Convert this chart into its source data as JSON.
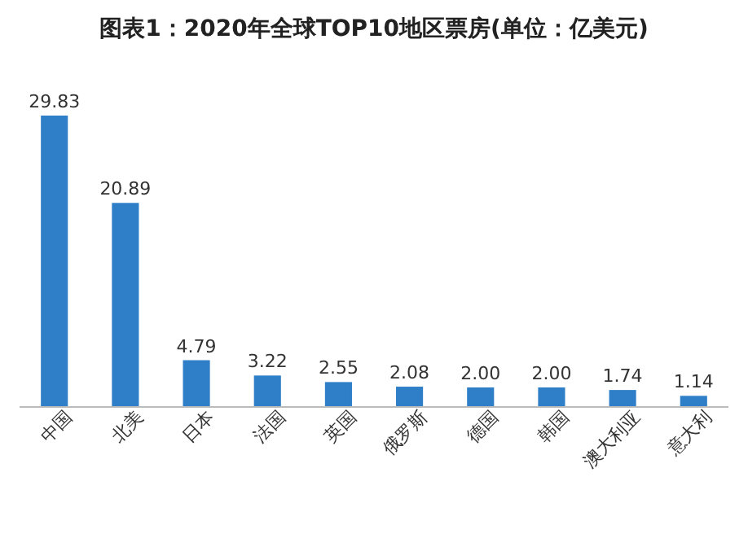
{
  "chart_data": {
    "type": "bar",
    "title": "图表1：2020年全球TOP10地区票房(单位：亿美元)",
    "categories": [
      "中国",
      "北美",
      "日本",
      "法国",
      "英国",
      "俄罗斯",
      "德国",
      "韩国",
      "澳大利亚",
      "意大利"
    ],
    "values": [
      29.83,
      20.89,
      4.79,
      3.22,
      2.55,
      2.08,
      2.0,
      2.0,
      1.74,
      1.14
    ],
    "value_labels": [
      "29.83",
      "20.89",
      "4.79",
      "3.22",
      "2.55",
      "2.08",
      "2.00",
      "2.00",
      "1.74",
      "1.14"
    ],
    "color": "#2f7fc8"
  }
}
